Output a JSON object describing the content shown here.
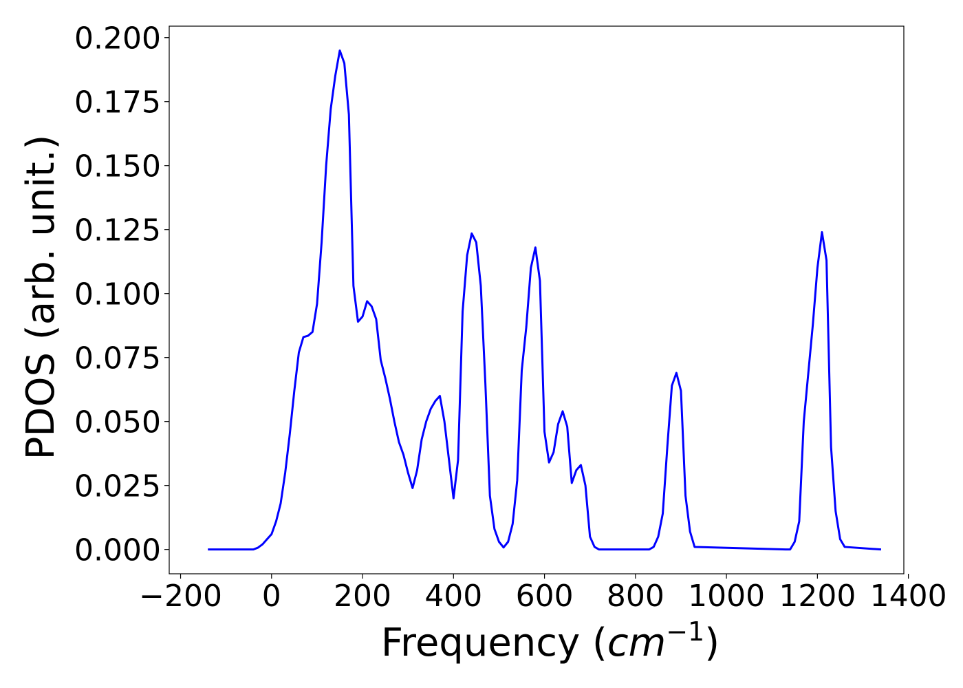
{
  "chart_data": {
    "type": "line",
    "title": "",
    "xlabel": "Frequency",
    "xlabel_unit_base": "cm",
    "xlabel_unit_exp": "−1",
    "ylabel": "PDOS (arb. unit.)",
    "xlim": [
      -225,
      1390
    ],
    "ylim": [
      -0.0095,
      0.2045
    ],
    "grid": false,
    "legend": "none",
    "xticks": [
      -200,
      0,
      200,
      400,
      600,
      800,
      1000,
      1200,
      1400
    ],
    "xtick_labels": [
      "−200",
      "0",
      "200",
      "400",
      "600",
      "800",
      "1000",
      "1200",
      "1400"
    ],
    "yticks": [
      0,
      0.025,
      0.05,
      0.075,
      0.1,
      0.125,
      0.15,
      0.175,
      0.2
    ],
    "ytick_labels": [
      "0.000",
      "0.025",
      "0.050",
      "0.075",
      "0.100",
      "0.125",
      "0.150",
      "0.175",
      "0.200"
    ],
    "series": [
      {
        "color": "#0000ff",
        "x": [
          -140,
          -40,
          -30,
          -20,
          -10,
          0,
          10,
          20,
          30,
          40,
          50,
          60,
          70,
          80,
          90,
          100,
          110,
          120,
          130,
          140,
          150,
          160,
          170,
          180,
          190,
          200,
          210,
          220,
          230,
          240,
          250,
          260,
          270,
          280,
          290,
          300,
          310,
          320,
          330,
          340,
          350,
          360,
          370,
          380,
          390,
          400,
          410,
          420,
          430,
          440,
          450,
          460,
          470,
          480,
          490,
          500,
          510,
          520,
          530,
          540,
          550,
          560,
          570,
          580,
          590,
          600,
          610,
          620,
          630,
          640,
          650,
          660,
          670,
          680,
          690,
          700,
          710,
          720,
          730,
          830,
          840,
          850,
          860,
          870,
          880,
          890,
          900,
          910,
          920,
          930,
          1130,
          1140,
          1150,
          1160,
          1170,
          1180,
          1190,
          1200,
          1210,
          1220,
          1230,
          1240,
          1250,
          1260,
          1340
        ],
        "y": [
          0.0,
          0.0,
          0.0007,
          0.002,
          0.004,
          0.006,
          0.011,
          0.018,
          0.03,
          0.045,
          0.062,
          0.077,
          0.083,
          0.0835,
          0.085,
          0.096,
          0.12,
          0.15,
          0.172,
          0.185,
          0.195,
          0.19,
          0.17,
          0.103,
          0.089,
          0.091,
          0.097,
          0.095,
          0.09,
          0.074,
          0.067,
          0.059,
          0.05,
          0.042,
          0.037,
          0.03,
          0.024,
          0.031,
          0.043,
          0.05,
          0.055,
          0.058,
          0.06,
          0.05,
          0.035,
          0.02,
          0.035,
          0.093,
          0.115,
          0.1235,
          0.12,
          0.103,
          0.065,
          0.021,
          0.008,
          0.003,
          0.0008,
          0.003,
          0.01,
          0.027,
          0.07,
          0.087,
          0.11,
          0.118,
          0.105,
          0.046,
          0.034,
          0.038,
          0.049,
          0.054,
          0.048,
          0.026,
          0.031,
          0.033,
          0.025,
          0.005,
          0.001,
          0.0,
          0.0,
          0.0,
          0.001,
          0.005,
          0.014,
          0.04,
          0.064,
          0.069,
          0.062,
          0.021,
          0.007,
          0.001,
          0.0,
          0.0,
          0.003,
          0.011,
          0.05,
          0.069,
          0.088,
          0.11,
          0.124,
          0.113,
          0.04,
          0.015,
          0.004,
          0.001,
          0.0
        ]
      }
    ]
  }
}
